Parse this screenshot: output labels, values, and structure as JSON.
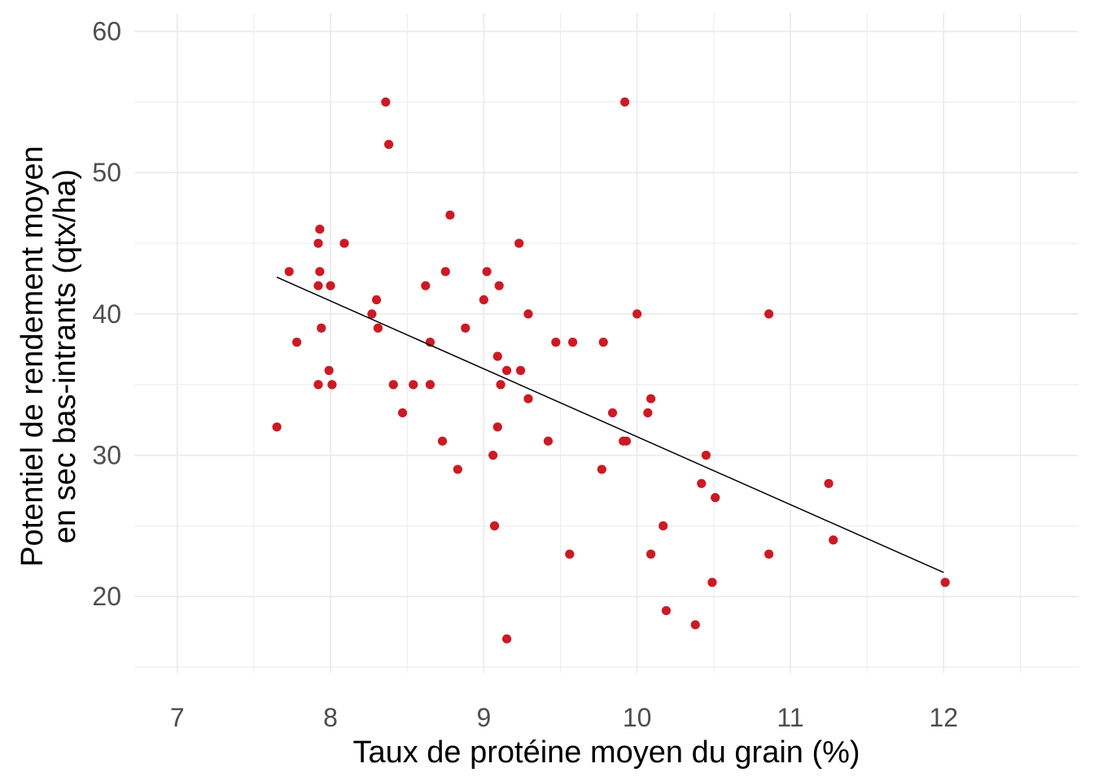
{
  "chart_data": {
    "type": "scatter",
    "title": "",
    "xlabel": "Taux de protéine moyen du grain (%)",
    "ylabel_lines": [
      "Potentiel de rendement moyen",
      "en sec bas-intrants (qtx/ha)"
    ],
    "xlim": [
      6.72,
      12.88
    ],
    "ylim": [
      14.6,
      61.3
    ],
    "x_ticks": [
      7,
      8,
      9,
      10,
      11,
      12
    ],
    "x_tick_labels": [
      "7",
      "8",
      "9",
      "10",
      "11",
      "12"
    ],
    "y_ticks": [
      20,
      30,
      40,
      50,
      60
    ],
    "y_tick_labels": [
      "20",
      "30",
      "40",
      "50",
      "60"
    ],
    "grid": true,
    "legend": "none",
    "point_color": "#cc1a24",
    "line_color": "#000000",
    "trend_line": {
      "x": [
        7.65,
        12.0
      ],
      "y": [
        42.6,
        21.7
      ]
    },
    "points": [
      {
        "x": 7.65,
        "y": 32
      },
      {
        "x": 7.73,
        "y": 43
      },
      {
        "x": 7.78,
        "y": 38
      },
      {
        "x": 7.92,
        "y": 45
      },
      {
        "x": 7.93,
        "y": 46
      },
      {
        "x": 7.92,
        "y": 42
      },
      {
        "x": 7.93,
        "y": 43
      },
      {
        "x": 7.94,
        "y": 39
      },
      {
        "x": 7.92,
        "y": 35
      },
      {
        "x": 7.99,
        "y": 36
      },
      {
        "x": 8.0,
        "y": 42
      },
      {
        "x": 8.01,
        "y": 35
      },
      {
        "x": 8.09,
        "y": 45
      },
      {
        "x": 8.27,
        "y": 40
      },
      {
        "x": 8.3,
        "y": 41
      },
      {
        "x": 8.31,
        "y": 39
      },
      {
        "x": 8.36,
        "y": 55
      },
      {
        "x": 8.38,
        "y": 52
      },
      {
        "x": 8.41,
        "y": 35
      },
      {
        "x": 8.47,
        "y": 33
      },
      {
        "x": 8.54,
        "y": 35
      },
      {
        "x": 8.62,
        "y": 42
      },
      {
        "x": 8.65,
        "y": 38
      },
      {
        "x": 8.65,
        "y": 35
      },
      {
        "x": 8.73,
        "y": 31
      },
      {
        "x": 8.75,
        "y": 43
      },
      {
        "x": 8.78,
        "y": 47
      },
      {
        "x": 8.83,
        "y": 29
      },
      {
        "x": 8.88,
        "y": 39
      },
      {
        "x": 9.0,
        "y": 41
      },
      {
        "x": 9.02,
        "y": 43
      },
      {
        "x": 9.06,
        "y": 30
      },
      {
        "x": 9.07,
        "y": 25
      },
      {
        "x": 9.09,
        "y": 37
      },
      {
        "x": 9.09,
        "y": 32
      },
      {
        "x": 9.1,
        "y": 42
      },
      {
        "x": 9.11,
        "y": 35
      },
      {
        "x": 9.15,
        "y": 36
      },
      {
        "x": 9.15,
        "y": 17
      },
      {
        "x": 9.23,
        "y": 45
      },
      {
        "x": 9.24,
        "y": 36
      },
      {
        "x": 9.29,
        "y": 40
      },
      {
        "x": 9.29,
        "y": 34
      },
      {
        "x": 9.42,
        "y": 31
      },
      {
        "x": 9.47,
        "y": 38
      },
      {
        "x": 9.56,
        "y": 23
      },
      {
        "x": 9.58,
        "y": 38
      },
      {
        "x": 9.77,
        "y": 29
      },
      {
        "x": 9.78,
        "y": 38
      },
      {
        "x": 9.84,
        "y": 33
      },
      {
        "x": 9.91,
        "y": 31
      },
      {
        "x": 9.92,
        "y": 55
      },
      {
        "x": 9.93,
        "y": 31
      },
      {
        "x": 10.0,
        "y": 40
      },
      {
        "x": 10.07,
        "y": 33
      },
      {
        "x": 10.09,
        "y": 34
      },
      {
        "x": 10.09,
        "y": 23
      },
      {
        "x": 10.17,
        "y": 25
      },
      {
        "x": 10.19,
        "y": 19
      },
      {
        "x": 10.38,
        "y": 18
      },
      {
        "x": 10.42,
        "y": 28
      },
      {
        "x": 10.45,
        "y": 30
      },
      {
        "x": 10.49,
        "y": 21
      },
      {
        "x": 10.51,
        "y": 27
      },
      {
        "x": 10.86,
        "y": 40
      },
      {
        "x": 10.86,
        "y": 23
      },
      {
        "x": 11.25,
        "y": 28
      },
      {
        "x": 11.28,
        "y": 24
      },
      {
        "x": 12.01,
        "y": 21
      }
    ]
  }
}
